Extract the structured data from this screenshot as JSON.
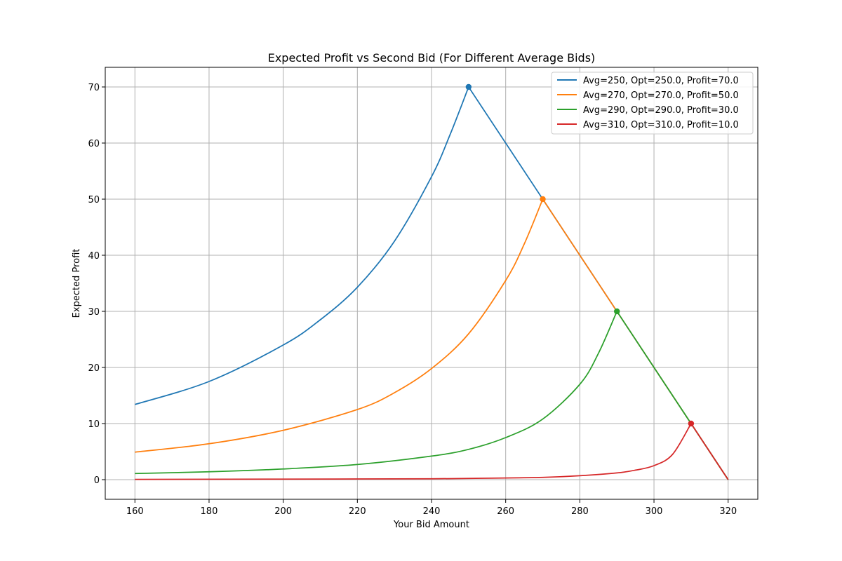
{
  "chart_data": {
    "type": "line",
    "title": "Expected Profit vs Second Bid (For Different Average Bids)",
    "xlabel": "Your Bid Amount",
    "ylabel": "Expected Profit",
    "xlim": [
      152,
      328
    ],
    "ylim": [
      -3.5,
      73.5
    ],
    "xticks": [
      160,
      180,
      200,
      220,
      240,
      260,
      280,
      300,
      320
    ],
    "yticks": [
      0,
      10,
      20,
      30,
      40,
      50,
      60,
      70
    ],
    "grid": true,
    "legend_position": "top-right",
    "series": [
      {
        "name": "Avg=250, Opt=250.0, Profit=70.0",
        "color": "#1f77b4",
        "avg": 250,
        "optimum": [
          250.0,
          70.0
        ],
        "points": [
          [
            160,
            13.4
          ],
          [
            180,
            17.5
          ],
          [
            200,
            24.0
          ],
          [
            210,
            28.5
          ],
          [
            220,
            34.3
          ],
          [
            230,
            42.5
          ],
          [
            240,
            54.0
          ],
          [
            245,
            61.5
          ],
          [
            250,
            70.0
          ],
          [
            270,
            50.0
          ],
          [
            290,
            30.0
          ],
          [
            310,
            10.0
          ],
          [
            320,
            0.0
          ]
        ]
      },
      {
        "name": "Avg=270, Opt=270.0, Profit=50.0",
        "color": "#ff7f0e",
        "avg": 270,
        "optimum": [
          270.0,
          50.0
        ],
        "points": [
          [
            160,
            4.9
          ],
          [
            180,
            6.4
          ],
          [
            200,
            8.8
          ],
          [
            220,
            12.5
          ],
          [
            230,
            15.5
          ],
          [
            240,
            19.8
          ],
          [
            250,
            26.0
          ],
          [
            260,
            35.5
          ],
          [
            265,
            42.0
          ],
          [
            270,
            50.0
          ],
          [
            290,
            30.0
          ],
          [
            310,
            10.0
          ],
          [
            320,
            0.0
          ]
        ]
      },
      {
        "name": "Avg=290, Opt=290.0, Profit=30.0",
        "color": "#2ca02c",
        "avg": 290,
        "optimum": [
          290.0,
          30.0
        ],
        "points": [
          [
            160,
            1.1
          ],
          [
            180,
            1.4
          ],
          [
            200,
            1.9
          ],
          [
            220,
            2.7
          ],
          [
            240,
            4.2
          ],
          [
            250,
            5.4
          ],
          [
            260,
            7.5
          ],
          [
            270,
            10.8
          ],
          [
            280,
            17.0
          ],
          [
            285,
            22.5
          ],
          [
            290,
            30.0
          ],
          [
            310,
            10.0
          ],
          [
            320,
            0.0
          ]
        ]
      },
      {
        "name": "Avg=310, Opt=310.0, Profit=10.0",
        "color": "#d62728",
        "avg": 310,
        "optimum": [
          310.0,
          10.0
        ],
        "points": [
          [
            160,
            0.05
          ],
          [
            200,
            0.1
          ],
          [
            240,
            0.15
          ],
          [
            260,
            0.3
          ],
          [
            270,
            0.4
          ],
          [
            280,
            0.7
          ],
          [
            290,
            1.2
          ],
          [
            295,
            1.7
          ],
          [
            300,
            2.5
          ],
          [
            305,
            4.5
          ],
          [
            310,
            10.0
          ],
          [
            320,
            0.0
          ]
        ]
      }
    ]
  }
}
